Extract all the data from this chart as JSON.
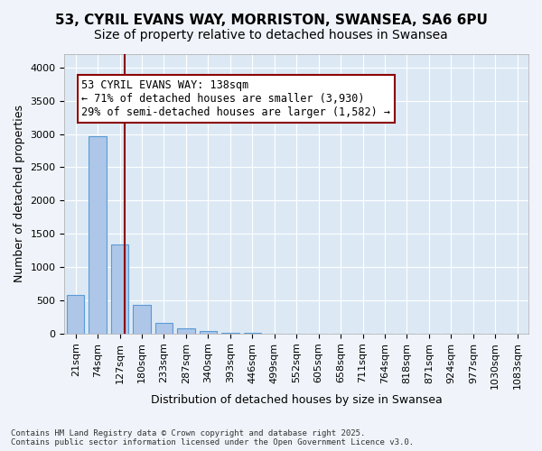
{
  "title1": "53, CYRIL EVANS WAY, MORRISTON, SWANSEA, SA6 6PU",
  "title2": "Size of property relative to detached houses in Swansea",
  "xlabel": "Distribution of detached houses by size in Swansea",
  "ylabel": "Number of detached properties",
  "footer1": "Contains HM Land Registry data © Crown copyright and database right 2025.",
  "footer2": "Contains public sector information licensed under the Open Government Licence v3.0.",
  "categories": [
    "21sqm",
    "74sqm",
    "127sqm",
    "180sqm",
    "233sqm",
    "287sqm",
    "340sqm",
    "393sqm",
    "446sqm",
    "499sqm",
    "552sqm",
    "605sqm",
    "658sqm",
    "711sqm",
    "764sqm",
    "818sqm",
    "871sqm",
    "924sqm",
    "977sqm",
    "1030sqm",
    "1083sqm"
  ],
  "bar_values": [
    580,
    2970,
    1340,
    430,
    155,
    80,
    40,
    10,
    5,
    2,
    1,
    0,
    0,
    0,
    0,
    0,
    0,
    0,
    0,
    0,
    0
  ],
  "bar_color": "#aec6e8",
  "bar_edge_color": "#5b9bd5",
  "bg_color": "#dce9f5",
  "grid_color": "#ffffff",
  "vline_color": "#8b0000",
  "annotation_text": "53 CYRIL EVANS WAY: 138sqm\n← 71% of detached houses are smaller (3,930)\n29% of semi-detached houses are larger (1,582) →",
  "ylim": [
    0,
    4200
  ],
  "yticks": [
    0,
    500,
    1000,
    1500,
    2000,
    2500,
    3000,
    3500,
    4000
  ],
  "title_fontsize": 11,
  "subtitle_fontsize": 10,
  "axis_label_fontsize": 9,
  "tick_fontsize": 8,
  "annotation_fontsize": 8.5
}
